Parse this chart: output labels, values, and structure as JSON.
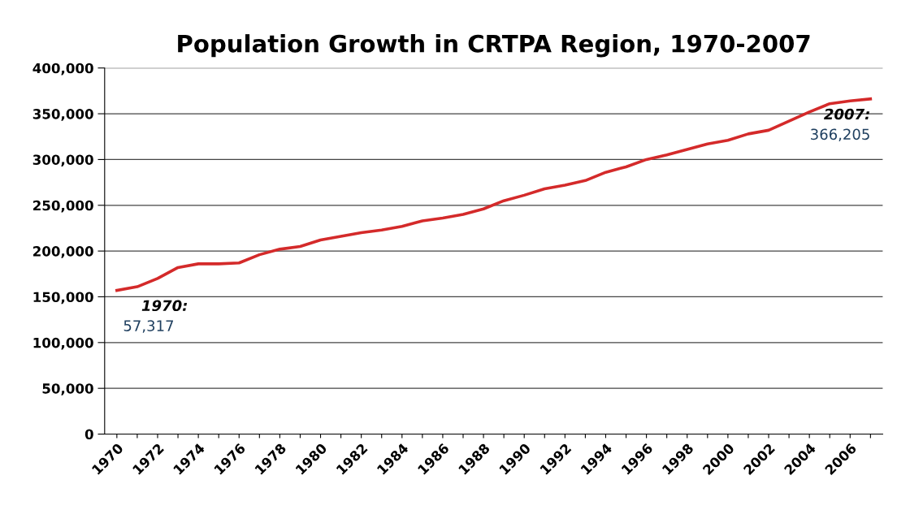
{
  "chart_data": {
    "type": "line",
    "title": "Population Growth in CRTPA Region, 1970-2007",
    "categories": [
      "1970",
      null,
      "1972",
      null,
      "1974",
      null,
      "1976",
      null,
      "1978",
      null,
      "1980",
      null,
      "1982",
      null,
      "1984",
      null,
      "1986",
      null,
      "1988",
      null,
      "1990",
      null,
      "1992",
      null,
      "1994",
      null,
      "1996",
      null,
      "1998",
      null,
      "2000",
      null,
      "2002",
      null,
      "2004",
      null,
      "2006",
      null
    ],
    "series": [
      {
        "color": "#d42a2a",
        "values": [
          157000,
          161000,
          170000,
          182000,
          186000,
          186000,
          187000,
          196000,
          202000,
          205000,
          212000,
          216000,
          220000,
          223000,
          227000,
          233000,
          236000,
          240000,
          246000,
          255000,
          261000,
          268000,
          272000,
          277000,
          286000,
          292000,
          300000,
          305000,
          311000,
          317000,
          321000,
          328000,
          332000,
          342000,
          352000,
          361000,
          364000,
          366205
        ]
      }
    ],
    "ylim": [
      0,
      400000
    ],
    "yticks": [
      {
        "value": 0,
        "label": "0"
      },
      {
        "value": 50000,
        "label": "50,000"
      },
      {
        "value": 100000,
        "label": "100,000"
      },
      {
        "value": 150000,
        "label": "150,000"
      },
      {
        "value": 200000,
        "label": "200,000"
      },
      {
        "value": 250000,
        "label": "250,000"
      },
      {
        "value": 300000,
        "label": "300,000"
      },
      {
        "value": 350000,
        "label": "350,000"
      },
      {
        "value": 400000,
        "label": "400,000"
      }
    ],
    "annotations": [
      "1970:",
      "57,317",
      "2007:",
      "366,205"
    ],
    "grid": "y",
    "marker": "none",
    "line_style": "solid",
    "legend": false
  }
}
